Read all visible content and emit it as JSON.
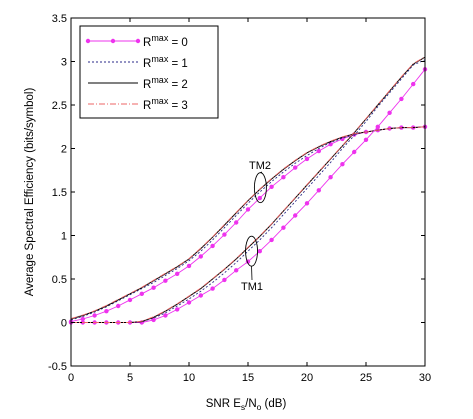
{
  "chart_data": {
    "type": "line",
    "xlabel": "SNR E",
    "xlabel_sub1": "s",
    "xlabel_mid": "/N",
    "xlabel_sub2": "o",
    "xlabel_end": " (dB)",
    "ylabel": "Average Spectral Efficiency (bits/symbol)",
    "xlim": [
      0,
      30
    ],
    "ylim": [
      -0.5,
      3.5
    ],
    "xticks": [
      0,
      5,
      10,
      15,
      20,
      25,
      30
    ],
    "xtick_labels": [
      "0",
      "5",
      "10",
      "15",
      "20",
      "25",
      "30"
    ],
    "yticks": [
      -0.5,
      0,
      0.5,
      1,
      1.5,
      2,
      2.5,
      3,
      3.5
    ],
    "ytick_labels": [
      "-0.5",
      "0",
      "0.5",
      "1",
      "1.5",
      "2",
      "2.5",
      "3",
      "3.5"
    ],
    "grid": false,
    "legend_position": "top-left",
    "legend": [
      {
        "prefix": "R",
        "sup": "max",
        "suffix": " = 0",
        "color": "#ee33ee",
        "dash": "",
        "marker": true
      },
      {
        "prefix": "R",
        "sup": "max",
        "suffix": " = 1",
        "color": "#2a2a88",
        "dash": "2,2",
        "marker": false
      },
      {
        "prefix": "R",
        "sup": "max",
        "suffix": " = 2",
        "color": "#000000",
        "dash": "",
        "marker": false
      },
      {
        "prefix": "R",
        "sup": "max",
        "suffix": " = 3",
        "color": "#ee6666",
        "dash": "6,2,1,2",
        "marker": false
      }
    ],
    "annotations": [
      {
        "text": "TM2",
        "x": 16,
        "y": 1.63
      },
      {
        "text": "TM1",
        "x": 15.4,
        "y": 0.85
      }
    ],
    "series": [
      {
        "group": "TM2",
        "style": 0,
        "x": [
          0,
          1,
          2,
          3,
          4,
          5,
          6,
          7,
          8,
          9,
          10,
          11,
          12,
          13,
          14,
          15,
          16,
          17,
          18,
          19,
          20,
          21,
          22,
          23,
          24,
          25,
          26,
          27,
          28,
          29,
          30
        ],
        "y": [
          0.01,
          0.04,
          0.08,
          0.13,
          0.19,
          0.26,
          0.33,
          0.4,
          0.48,
          0.56,
          0.65,
          0.76,
          0.88,
          1.01,
          1.15,
          1.3,
          1.43,
          1.56,
          1.67,
          1.78,
          1.88,
          1.97,
          2.05,
          2.11,
          2.16,
          2.19,
          2.21,
          2.23,
          2.24,
          2.24,
          2.25
        ]
      },
      {
        "group": "TM2",
        "style": 1,
        "x": [
          0,
          1,
          2,
          3,
          4,
          5,
          6,
          7,
          8,
          9,
          10,
          11,
          12,
          13,
          14,
          15,
          16,
          17,
          18,
          19,
          20,
          21,
          22,
          23,
          24,
          25,
          26,
          27,
          28,
          29,
          30
        ],
        "y": [
          0.03,
          0.07,
          0.12,
          0.18,
          0.25,
          0.32,
          0.39,
          0.46,
          0.54,
          0.62,
          0.71,
          0.82,
          0.95,
          1.09,
          1.23,
          1.37,
          1.5,
          1.62,
          1.73,
          1.83,
          1.92,
          2.0,
          2.07,
          2.12,
          2.16,
          2.19,
          2.21,
          2.23,
          2.24,
          2.24,
          2.25
        ]
      },
      {
        "group": "TM2",
        "style": 2,
        "x": [
          0,
          1,
          2,
          3,
          4,
          5,
          6,
          7,
          8,
          9,
          10,
          11,
          12,
          13,
          14,
          15,
          16,
          17,
          18,
          19,
          20,
          21,
          22,
          23,
          24,
          25,
          26,
          27,
          28,
          29,
          30
        ],
        "y": [
          0.04,
          0.08,
          0.13,
          0.19,
          0.26,
          0.33,
          0.4,
          0.48,
          0.56,
          0.64,
          0.73,
          0.85,
          0.98,
          1.12,
          1.26,
          1.4,
          1.53,
          1.65,
          1.76,
          1.86,
          1.95,
          2.02,
          2.08,
          2.13,
          2.17,
          2.19,
          2.21,
          2.23,
          2.24,
          2.24,
          2.25
        ]
      },
      {
        "group": "TM2",
        "style": 3,
        "x": [
          0,
          1,
          2,
          3,
          4,
          5,
          6,
          7,
          8,
          9,
          10,
          11,
          12,
          13,
          14,
          15,
          16,
          17,
          18,
          19,
          20,
          21,
          22,
          23,
          24,
          25,
          26,
          27,
          28,
          29,
          30
        ],
        "y": [
          0.045,
          0.085,
          0.135,
          0.195,
          0.265,
          0.335,
          0.405,
          0.485,
          0.565,
          0.645,
          0.735,
          0.855,
          0.985,
          1.125,
          1.265,
          1.405,
          1.535,
          1.655,
          1.765,
          1.865,
          1.955,
          2.025,
          2.085,
          2.135,
          2.17,
          2.19,
          2.21,
          2.23,
          2.24,
          2.24,
          2.25
        ]
      },
      {
        "group": "TM1",
        "style": 0,
        "x": [
          0,
          1,
          2,
          3,
          4,
          5,
          6,
          7,
          8,
          9,
          10,
          11,
          12,
          13,
          14,
          15,
          16,
          17,
          18,
          19,
          20,
          21,
          22,
          23,
          24,
          25,
          26,
          27,
          28,
          29,
          30
        ],
        "y": [
          0.0,
          0.0,
          0.0,
          0.0,
          0.0,
          0.0,
          0.0,
          0.03,
          0.08,
          0.15,
          0.23,
          0.31,
          0.39,
          0.49,
          0.6,
          0.7,
          0.82,
          0.95,
          1.09,
          1.23,
          1.37,
          1.52,
          1.67,
          1.82,
          1.96,
          2.1,
          2.25,
          2.41,
          2.57,
          2.74,
          2.91
        ]
      },
      {
        "group": "TM1",
        "style": 1,
        "x": [
          0,
          1,
          2,
          3,
          4,
          5,
          6,
          7,
          8,
          9,
          10,
          11,
          12,
          13,
          14,
          15,
          16,
          17,
          18,
          19,
          20,
          21,
          22,
          23,
          24,
          25,
          26,
          27,
          28,
          29,
          30
        ],
        "y": [
          0.0,
          0.0,
          0.0,
          0.0,
          0.0,
          0.0,
          0.01,
          0.05,
          0.11,
          0.19,
          0.27,
          0.36,
          0.46,
          0.57,
          0.69,
          0.82,
          0.95,
          1.09,
          1.24,
          1.39,
          1.54,
          1.69,
          1.84,
          2.0,
          2.15,
          2.31,
          2.48,
          2.64,
          2.8,
          2.96,
          3.02
        ]
      },
      {
        "group": "TM1",
        "style": 2,
        "x": [
          0,
          1,
          2,
          3,
          4,
          5,
          6,
          7,
          8,
          9,
          10,
          11,
          12,
          13,
          14,
          15,
          16,
          17,
          18,
          19,
          20,
          21,
          22,
          23,
          24,
          25,
          26,
          27,
          28,
          29,
          30
        ],
        "y": [
          0.0,
          0.0,
          0.0,
          0.0,
          0.0,
          0.0,
          0.01,
          0.06,
          0.13,
          0.21,
          0.3,
          0.39,
          0.5,
          0.61,
          0.73,
          0.86,
          0.99,
          1.13,
          1.28,
          1.43,
          1.58,
          1.73,
          1.88,
          2.03,
          2.18,
          2.34,
          2.5,
          2.66,
          2.82,
          2.97,
          3.05
        ]
      },
      {
        "group": "TM1",
        "style": 3,
        "x": [
          0,
          1,
          2,
          3,
          4,
          5,
          6,
          7,
          8,
          9,
          10,
          11,
          12,
          13,
          14,
          15,
          16,
          17,
          18,
          19,
          20,
          21,
          22,
          23,
          24,
          25,
          26,
          27,
          28,
          29,
          30
        ],
        "y": [
          0.0,
          0.0,
          0.0,
          0.0,
          0.0,
          0.0,
          0.015,
          0.065,
          0.135,
          0.215,
          0.305,
          0.395,
          0.505,
          0.615,
          0.735,
          0.865,
          0.995,
          1.135,
          1.285,
          1.435,
          1.585,
          1.735,
          1.885,
          2.035,
          2.185,
          2.345,
          2.505,
          2.665,
          2.825,
          2.975,
          3.055
        ]
      }
    ]
  }
}
